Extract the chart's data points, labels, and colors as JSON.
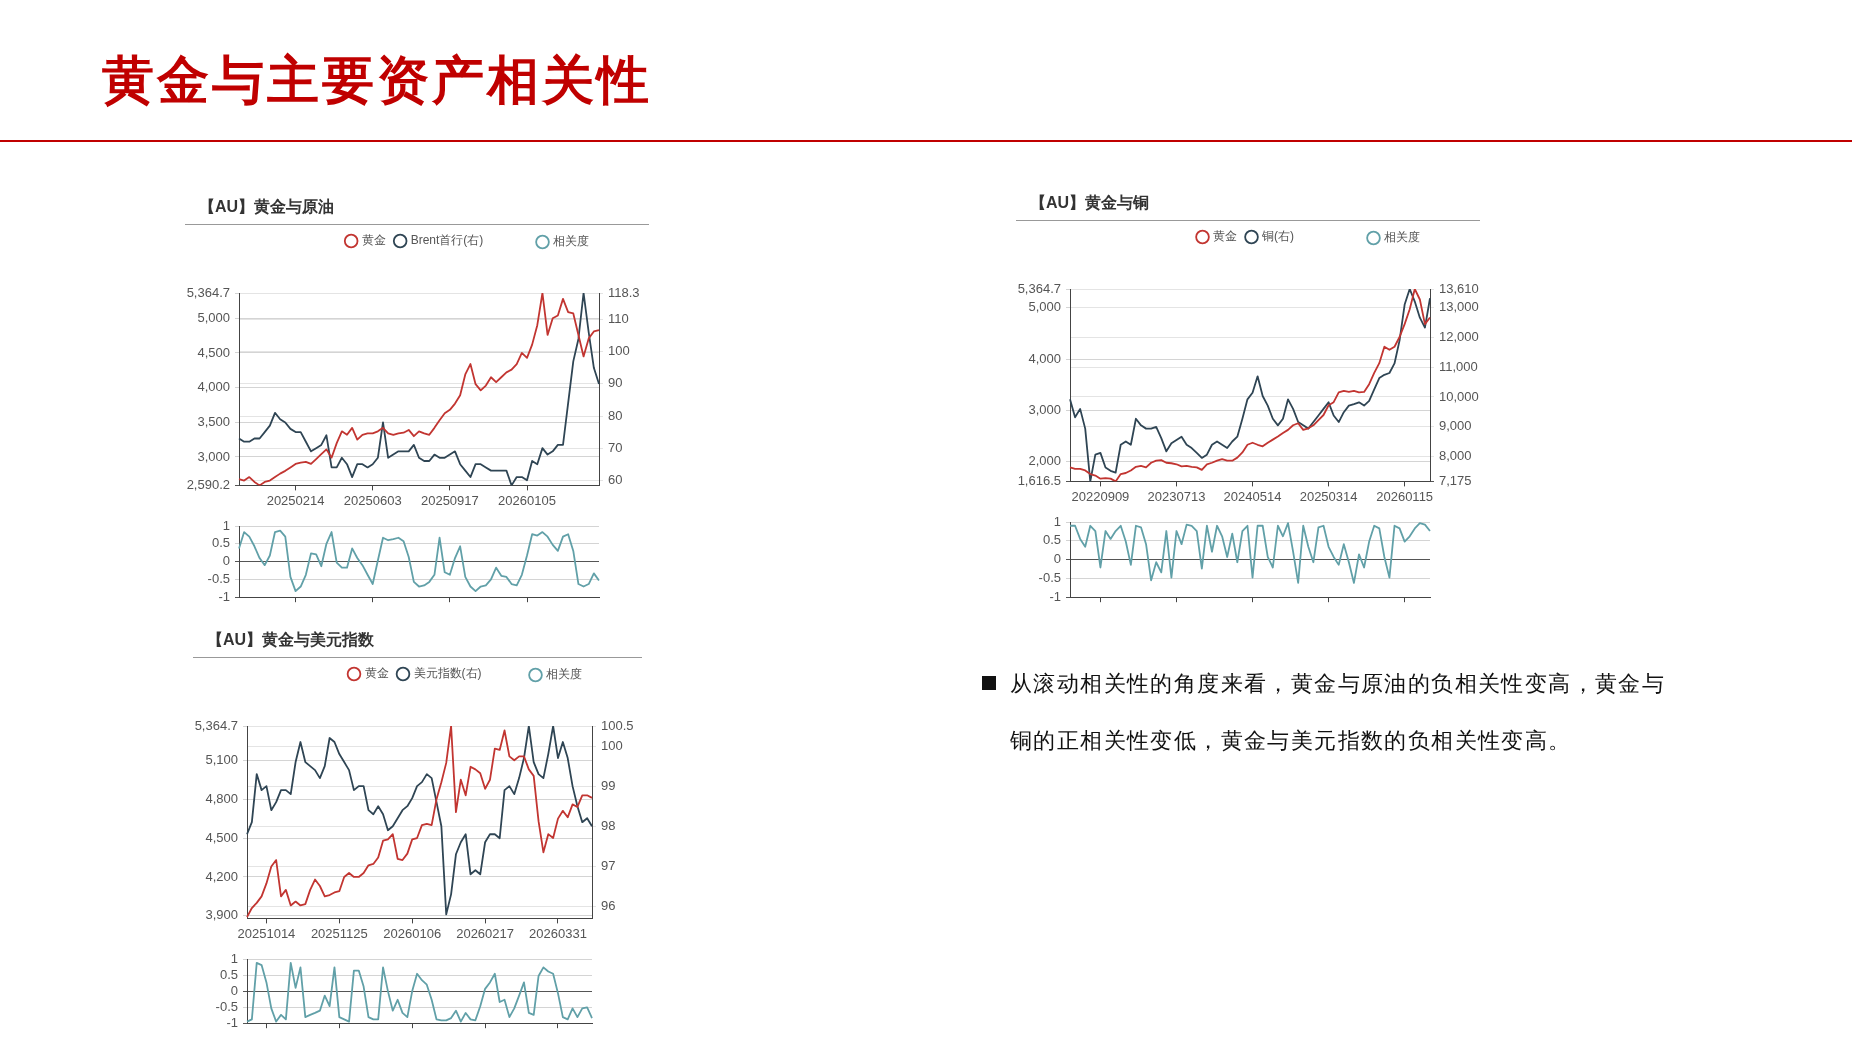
{
  "chart_data": [
    {
      "type": "other",
      "title": "黄金与主要资产相关性"
    },
    {
      "type": "line",
      "title": "【AU】黄金与原油",
      "legend": "top",
      "grid": "y",
      "categories": [
        null,
        null,
        null,
        null,
        null,
        null,
        null,
        null,
        null,
        null,
        null,
        "20250214",
        null,
        null,
        null,
        null,
        null,
        null,
        null,
        null,
        null,
        null,
        null,
        null,
        null,
        null,
        "20250603",
        null,
        null,
        null,
        null,
        null,
        null,
        null,
        null,
        null,
        null,
        null,
        null,
        null,
        null,
        "20250917",
        null,
        null,
        null,
        null,
        null,
        null,
        null,
        null,
        null,
        null,
        null,
        null,
        null,
        null,
        "20260105",
        null,
        null,
        null,
        null,
        null,
        null,
        null,
        null,
        null,
        null,
        null,
        null,
        null,
        null
      ],
      "ylim": [
        2590.2,
        5364.7
      ],
      "yticks": [
        {
          "value": 2590.2,
          "label": "2,590.2"
        },
        {
          "value": 3000,
          "label": "3,000"
        },
        {
          "value": 3500,
          "label": "3,500"
        },
        {
          "value": 4000,
          "label": "4,000"
        },
        {
          "value": 4500,
          "label": "4,500"
        },
        {
          "value": 5000,
          "label": "5,000"
        },
        {
          "value": 5364.7,
          "label": "5,364.7"
        }
      ],
      "y2lim": [
        58.4,
        118.3
      ],
      "y2ticks": [
        60,
        70,
        80,
        90,
        100,
        110,
        118.3
      ],
      "series": [
        {
          "name": "黄金",
          "color": "#c23531",
          "values": [
            2680,
            2660,
            2710,
            2640,
            2590.2,
            2640,
            2660,
            2710,
            2760,
            2800,
            2850,
            2900,
            2920,
            2930,
            2900,
            2970,
            3040,
            3110,
            2990,
            3200,
            3370,
            3320,
            3420,
            3250,
            3320,
            3340,
            3340,
            3370,
            3420,
            3340,
            3320,
            3340,
            3350,
            3390,
            3300,
            3370,
            3340,
            3320,
            3420,
            3530,
            3630,
            3680,
            3770,
            3890,
            4190,
            4340,
            4050,
            3960,
            4030,
            4150,
            4080,
            4150,
            4220,
            4260,
            4340,
            4500,
            4430,
            4620,
            4900,
            5364.7,
            4760,
            5000,
            5040,
            5280,
            5090,
            5070,
            4760,
            4450,
            4710,
            4810,
            4830
          ]
        },
        {
          "name": "Brent首行(右)",
          "color": "#2f4554",
          "axis": "y2",
          "values": [
            73,
            72,
            72,
            73,
            73,
            75,
            77,
            81,
            79,
            78,
            76,
            75,
            75,
            72,
            69,
            70,
            71,
            74,
            64,
            64,
            67,
            65,
            61,
            65,
            65,
            64,
            65,
            67,
            78,
            67,
            68,
            69,
            69,
            69,
            71,
            67,
            66,
            66,
            68,
            67,
            67,
            68,
            69,
            65,
            63,
            61,
            65,
            65,
            64,
            63,
            63,
            63,
            63,
            58.4,
            61,
            61,
            60,
            66,
            65,
            70,
            68,
            69,
            71,
            71,
            84,
            97,
            104,
            118.3,
            106,
            95,
            90
          ]
        }
      ]
    },
    {
      "type": "line",
      "legend": "top right",
      "grid": "y",
      "tick_labels": "y",
      "categories": [
        null,
        null,
        null,
        null,
        null,
        null,
        null,
        null,
        null,
        null,
        null,
        "20250214",
        null,
        null,
        null,
        null,
        null,
        null,
        null,
        null,
        null,
        null,
        null,
        null,
        null,
        null,
        "20250603",
        null,
        null,
        null,
        null,
        null,
        null,
        null,
        null,
        null,
        null,
        null,
        null,
        null,
        null,
        "20250917",
        null,
        null,
        null,
        null,
        null,
        null,
        null,
        null,
        null,
        null,
        null,
        null,
        null,
        null,
        "20260105",
        null,
        null,
        null,
        null,
        null,
        null,
        null,
        null,
        null,
        null,
        null,
        null,
        null,
        null
      ],
      "ylim": [
        -1,
        1
      ],
      "yticks": [
        -1,
        -0.5,
        0,
        0.5,
        1
      ],
      "series": [
        {
          "name": "相关度",
          "color": "#61a0a8",
          "values": [
            0.37,
            0.83,
            0.7,
            0.43,
            0.1,
            -0.1,
            0.17,
            0.83,
            0.87,
            0.7,
            -0.43,
            -0.83,
            -0.7,
            -0.37,
            0.23,
            0.2,
            -0.13,
            0.5,
            0.83,
            -0.03,
            -0.17,
            -0.17,
            0.37,
            0.1,
            -0.1,
            -0.37,
            -0.63,
            0.03,
            0.67,
            0.6,
            0.63,
            0.67,
            0.57,
            0.13,
            -0.57,
            -0.7,
            -0.67,
            -0.57,
            -0.37,
            0.67,
            -0.3,
            -0.37,
            0.1,
            0.43,
            -0.43,
            -0.7,
            -0.83,
            -0.7,
            -0.67,
            -0.5,
            -0.17,
            -0.4,
            -0.43,
            -0.63,
            -0.67,
            -0.37,
            0.17,
            0.77,
            0.73,
            0.83,
            0.7,
            0.47,
            0.3,
            0.7,
            0.77,
            0.3,
            -0.63,
            -0.7,
            -0.63,
            -0.33,
            -0.53
          ]
        }
      ]
    },
    {
      "type": "line",
      "title": "【AU】黄金与铜",
      "legend": "top",
      "grid": "y",
      "categories": [
        null,
        null,
        null,
        null,
        null,
        null,
        "20220909",
        null,
        null,
        null,
        null,
        null,
        null,
        null,
        null,
        null,
        null,
        null,
        null,
        null,
        null,
        "20230713",
        null,
        null,
        null,
        null,
        null,
        null,
        null,
        null,
        null,
        null,
        null,
        null,
        null,
        null,
        "20240514",
        null,
        null,
        null,
        null,
        null,
        null,
        null,
        null,
        null,
        null,
        null,
        null,
        null,
        null,
        "20250314",
        null,
        null,
        null,
        null,
        null,
        null,
        null,
        null,
        null,
        null,
        null,
        null,
        null,
        null,
        "20260115",
        null,
        null,
        null,
        null,
        null
      ],
      "ylim": [
        1616.5,
        5364.7
      ],
      "yticks": [
        {
          "value": 1616.5,
          "label": "1,616.5"
        },
        {
          "value": 2000,
          "label": "2,000"
        },
        {
          "value": 3000,
          "label": "3,000"
        },
        {
          "value": 4000,
          "label": "4,000"
        },
        {
          "value": 5000,
          "label": "5,000"
        },
        {
          "value": 5364.7,
          "label": "5,364.7"
        }
      ],
      "y2lim": [
        7175,
        13610
      ],
      "y2ticks": [
        {
          "value": 7175,
          "label": "7,175"
        },
        {
          "value": 8000,
          "label": "8,000"
        },
        {
          "value": 9000,
          "label": "9,000"
        },
        {
          "value": 10000,
          "label": "10,000"
        },
        {
          "value": 11000,
          "label": "11,000"
        },
        {
          "value": 12000,
          "label": "12,000"
        },
        {
          "value": 13000,
          "label": "13,000"
        },
        {
          "value": 13610,
          "label": "13,610"
        }
      ],
      "series": [
        {
          "name": "黄金",
          "color": "#c23531",
          "values": [
            1890,
            1860,
            1860,
            1830,
            1760,
            1730,
            1670,
            1680,
            1670,
            1616.5,
            1760,
            1780,
            1830,
            1900,
            1920,
            1890,
            1980,
            2020,
            2030,
            1980,
            1970,
            1950,
            1910,
            1920,
            1900,
            1890,
            1840,
            1950,
            1980,
            2020,
            2050,
            2020,
            2020,
            2080,
            2180,
            2330,
            2370,
            2330,
            2300,
            2370,
            2430,
            2490,
            2560,
            2620,
            2710,
            2750,
            2620,
            2650,
            2710,
            2810,
            2910,
            3100,
            3160,
            3350,
            3380,
            3360,
            3380,
            3350,
            3360,
            3510,
            3730,
            3920,
            4240,
            4180,
            4240,
            4430,
            4680,
            4970,
            5364.7,
            5160,
            4680,
            4810
          ]
        },
        {
          "name": "铜(右)",
          "color": "#2f4554",
          "axis": "y2",
          "values": [
            9920,
            9320,
            9600,
            8940,
            7175,
            8070,
            8130,
            7640,
            7530,
            7470,
            8400,
            8510,
            8400,
            9270,
            9050,
            8940,
            8940,
            9000,
            8620,
            8180,
            8450,
            8560,
            8670,
            8400,
            8290,
            8130,
            7960,
            8070,
            8400,
            8510,
            8400,
            8290,
            8510,
            8670,
            9270,
            9920,
            10140,
            10690,
            10030,
            9710,
            9270,
            9050,
            9270,
            9920,
            9600,
            9160,
            9050,
            8940,
            9160,
            9380,
            9600,
            9820,
            9380,
            9160,
            9490,
            9710,
            9760,
            9820,
            9710,
            9870,
            10250,
            10630,
            10740,
            10800,
            11120,
            11890,
            13090,
            13610,
            13190,
            12650,
            12320,
            13300
          ]
        }
      ]
    },
    {
      "type": "line",
      "legend": "top right",
      "grid": "y",
      "tick_labels": "y",
      "categories": [
        null,
        null,
        null,
        null,
        null,
        null,
        "20220909",
        null,
        null,
        null,
        null,
        null,
        null,
        null,
        null,
        null,
        null,
        null,
        null,
        null,
        null,
        "20230713",
        null,
        null,
        null,
        null,
        null,
        null,
        null,
        null,
        null,
        null,
        null,
        null,
        null,
        null,
        "20240514",
        null,
        null,
        null,
        null,
        null,
        null,
        null,
        null,
        null,
        null,
        null,
        null,
        null,
        null,
        "20250314",
        null,
        null,
        null,
        null,
        null,
        null,
        null,
        null,
        null,
        null,
        null,
        null,
        null,
        null,
        "20260115",
        null,
        null,
        null,
        null,
        null
      ],
      "ylim": [
        -1,
        1
      ],
      "yticks": [
        -1,
        -0.5,
        0,
        0.5,
        1
      ],
      "series": [
        {
          "name": "相关度",
          "color": "#61a0a8",
          "values": [
            0.9,
            0.9,
            0.55,
            0.34,
            0.9,
            0.76,
            -0.21,
            0.76,
            0.55,
            0.76,
            0.9,
            0.48,
            -0.14,
            0.9,
            0.86,
            0.41,
            -0.55,
            -0.07,
            -0.34,
            0.76,
            -0.48,
            0.76,
            0.41,
            0.93,
            0.9,
            0.76,
            -0.24,
            0.9,
            0.21,
            0.9,
            0.62,
            0.07,
            0.69,
            -0.07,
            0.76,
            0.9,
            -0.48,
            0.9,
            0.9,
            0.07,
            -0.21,
            0.9,
            0.62,
            0.97,
            0.21,
            -0.62,
            0.9,
            0.34,
            -0.07,
            0.86,
            0.9,
            0.34,
            0.07,
            -0.14,
            0.41,
            -0.07,
            -0.62,
            0.14,
            -0.21,
            0.48,
            0.9,
            0.83,
            0.07,
            -0.48,
            0.9,
            0.83,
            0.48,
            0.62,
            0.83,
            0.97,
            0.93,
            0.76
          ]
        }
      ]
    },
    {
      "type": "line",
      "title": "【AU】黄金与美元指数",
      "legend": "top",
      "grid": "y",
      "categories": [
        null,
        null,
        null,
        null,
        "20251014",
        null,
        null,
        null,
        null,
        null,
        null,
        null,
        null,
        null,
        null,
        null,
        null,
        null,
        null,
        "20251125",
        null,
        null,
        null,
        null,
        null,
        null,
        null,
        null,
        null,
        null,
        null,
        null,
        null,
        null,
        "20260106",
        null,
        null,
        null,
        null,
        null,
        null,
        null,
        null,
        null,
        null,
        null,
        null,
        null,
        null,
        "20260217",
        null,
        null,
        null,
        null,
        null,
        null,
        null,
        null,
        null,
        null,
        null,
        null,
        null,
        null,
        "20260331",
        null,
        null,
        null,
        null,
        null,
        null,
        null
      ],
      "ylim": [
        3880,
        5364.7
      ],
      "yticks": [
        {
          "value": 3900,
          "label": "3,900"
        },
        {
          "value": 4200,
          "label": "4,200"
        },
        {
          "value": 4500,
          "label": "4,500"
        },
        {
          "value": 4800,
          "label": "4,800"
        },
        {
          "value": 5100,
          "label": "5,100"
        },
        {
          "value": 5364.7,
          "label": "5,364.7"
        }
      ],
      "y2lim": [
        95.7,
        100.5
      ],
      "y2ticks": [
        96,
        97,
        98,
        99,
        100,
        100.5
      ],
      "series": [
        {
          "name": "黄金",
          "color": "#c23531",
          "values": [
            3890,
            3960,
            4000,
            4050,
            4150,
            4280,
            4330,
            4050,
            4100,
            3980,
            4010,
            3980,
            3990,
            4100,
            4180,
            4130,
            4050,
            4060,
            4080,
            4090,
            4200,
            4230,
            4200,
            4200,
            4230,
            4290,
            4300,
            4350,
            4480,
            4490,
            4530,
            4340,
            4330,
            4380,
            4490,
            4500,
            4600,
            4610,
            4600,
            4800,
            4930,
            5080,
            5364.7,
            4700,
            4950,
            4830,
            5050,
            5030,
            5000,
            4880,
            4950,
            5190,
            5180,
            5330,
            5130,
            5100,
            5130,
            5130,
            5030,
            4980,
            4630,
            4390,
            4530,
            4500,
            4650,
            4710,
            4660,
            4760,
            4740,
            4830,
            4830,
            4810
          ]
        },
        {
          "name": "美元指数(右)",
          "color": "#2f4554",
          "axis": "y2",
          "values": [
            97.8,
            98.1,
            99.3,
            98.9,
            99.0,
            98.4,
            98.6,
            98.9,
            98.9,
            98.8,
            99.6,
            100.1,
            99.6,
            99.5,
            99.4,
            99.2,
            99.5,
            100.2,
            100.1,
            99.8,
            99.6,
            99.4,
            98.9,
            99.0,
            99.0,
            98.4,
            98.3,
            98.5,
            98.3,
            97.9,
            98.0,
            98.2,
            98.4,
            98.5,
            98.7,
            99.0,
            99.1,
            99.3,
            99.2,
            98.6,
            98.0,
            95.8,
            96.3,
            97.3,
            97.6,
            97.8,
            96.8,
            96.9,
            96.8,
            97.6,
            97.8,
            97.8,
            97.7,
            98.9,
            99.0,
            98.8,
            99.2,
            99.7,
            100.5,
            99.6,
            99.3,
            99.2,
            99.8,
            100.5,
            99.7,
            100.1,
            99.7,
            99.0,
            98.5,
            98.1,
            98.2,
            98.0
          ]
        }
      ]
    },
    {
      "type": "line",
      "legend": "top right",
      "grid": "y",
      "tick_labels": "y",
      "categories": [
        null,
        null,
        null,
        null,
        "20251014",
        null,
        null,
        null,
        null,
        null,
        null,
        null,
        null,
        null,
        null,
        null,
        null,
        null,
        null,
        "20251125",
        null,
        null,
        null,
        null,
        null,
        null,
        null,
        null,
        null,
        null,
        null,
        null,
        null,
        null,
        "20260106",
        null,
        null,
        null,
        null,
        null,
        null,
        null,
        null,
        null,
        null,
        null,
        null,
        null,
        null,
        "20260217",
        null,
        null,
        null,
        null,
        null,
        null,
        null,
        null,
        null,
        null,
        null,
        null,
        null,
        null,
        "20260331",
        null,
        null,
        null,
        null,
        null,
        null,
        null
      ],
      "ylim": [
        -1,
        1
      ],
      "yticks": [
        -1,
        -0.5,
        0,
        0.5,
        1
      ],
      "series": [
        {
          "name": "相关度",
          "color": "#61a0a8",
          "values": [
            -0.95,
            -0.88,
            0.88,
            0.81,
            0.27,
            -0.54,
            -0.95,
            -0.74,
            -0.88,
            0.88,
            0.1,
            0.74,
            -0.81,
            -0.74,
            -0.68,
            -0.61,
            -0.14,
            -0.47,
            0.74,
            -0.81,
            -0.88,
            -0.95,
            0.64,
            0.64,
            0.14,
            -0.81,
            -0.88,
            -0.88,
            0.74,
            0,
            -0.61,
            -0.27,
            -0.68,
            -0.81,
            0,
            0.54,
            0.34,
            0.2,
            -0.27,
            -0.88,
            -0.91,
            -0.91,
            -0.84,
            -0.61,
            -0.95,
            -0.68,
            -0.88,
            -0.91,
            -0.47,
            0.07,
            0.27,
            0.54,
            -0.34,
            -0.27,
            -0.81,
            -0.54,
            -0.14,
            0.27,
            -0.68,
            -0.74,
            0.47,
            0.74,
            0.61,
            0.54,
            -0.07,
            -0.81,
            -0.88,
            -0.54,
            -0.81,
            -0.54,
            -0.51,
            -0.84
          ]
        }
      ]
    },
    {
      "type": "other",
      "annotations": [
        "从滚动相关性的角度来看，黄金与原油的负相关性变高，黄金与铜的正相关性变低，黄金与美元指数的负相关性变高。"
      ]
    }
  ]
}
